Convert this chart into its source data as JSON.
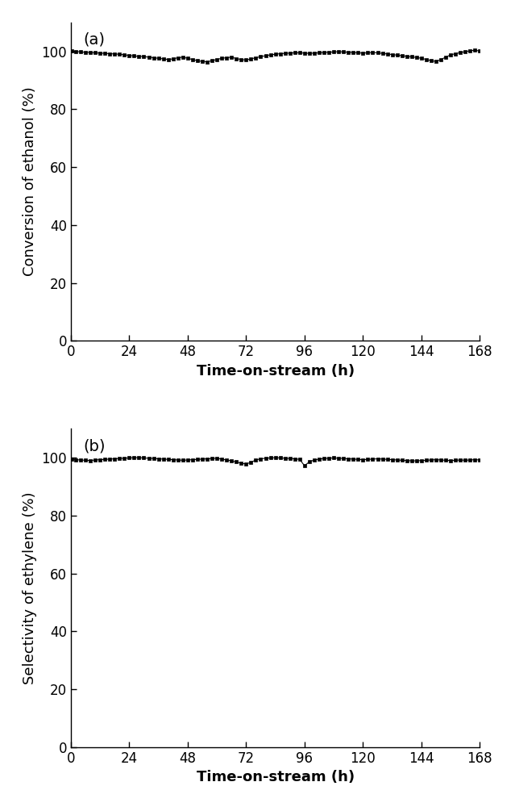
{
  "panel_a": {
    "label": "(a)",
    "ylabel": "Conversion of ethanol (%)",
    "xlabel": "Time-on-stream (h)",
    "ylim": [
      0,
      110
    ],
    "xlim": [
      0,
      168
    ],
    "yticks": [
      0,
      20,
      40,
      60,
      80,
      100
    ],
    "xticks": [
      0,
      24,
      48,
      72,
      96,
      120,
      144,
      168
    ],
    "data_x": [
      0.5,
      2,
      4,
      6,
      8,
      10,
      12,
      14,
      16,
      18,
      20,
      22,
      24,
      26,
      28,
      30,
      32,
      34,
      36,
      38,
      40,
      42,
      44,
      46,
      48,
      50,
      52,
      54,
      56,
      58,
      60,
      62,
      64,
      66,
      68,
      70,
      72,
      74,
      76,
      78,
      80,
      82,
      84,
      86,
      88,
      90,
      92,
      94,
      96,
      98,
      100,
      102,
      104,
      106,
      108,
      110,
      112,
      114,
      116,
      118,
      120,
      122,
      124,
      126,
      128,
      130,
      132,
      134,
      136,
      138,
      140,
      142,
      144,
      146,
      148,
      150,
      152,
      154,
      156,
      158,
      160,
      162,
      164,
      166,
      168
    ],
    "data_y": [
      100.1,
      100.0,
      99.8,
      99.7,
      99.6,
      99.5,
      99.4,
      99.3,
      99.2,
      99.1,
      99.0,
      98.8,
      98.6,
      98.4,
      98.3,
      98.2,
      98.0,
      97.8,
      97.6,
      97.4,
      97.2,
      97.4,
      97.8,
      98.0,
      97.6,
      97.2,
      96.8,
      96.5,
      96.4,
      96.8,
      97.2,
      97.6,
      97.8,
      98.0,
      97.5,
      97.2,
      97.0,
      97.4,
      97.8,
      98.2,
      98.5,
      98.8,
      99.0,
      99.2,
      99.3,
      99.4,
      99.5,
      99.5,
      99.4,
      99.3,
      99.4,
      99.5,
      99.6,
      99.7,
      99.8,
      99.9,
      99.8,
      99.7,
      99.6,
      99.5,
      99.4,
      99.5,
      99.6,
      99.5,
      99.3,
      99.1,
      98.9,
      98.7,
      98.5,
      98.3,
      98.1,
      97.9,
      97.6,
      97.2,
      96.8,
      96.5,
      97.2,
      98.0,
      98.8,
      99.2,
      99.6,
      99.9,
      100.2,
      100.4,
      100.1
    ]
  },
  "panel_b": {
    "label": "(b)",
    "ylabel": "Selectivity of ethylene (%)",
    "xlabel": "Time-on-stream (h)",
    "ylim": [
      0,
      110
    ],
    "xlim": [
      0,
      168
    ],
    "yticks": [
      0,
      20,
      40,
      60,
      80,
      100
    ],
    "xticks": [
      0,
      24,
      48,
      72,
      96,
      120,
      144,
      168
    ],
    "data_x": [
      0.5,
      2,
      4,
      6,
      8,
      10,
      12,
      14,
      16,
      18,
      20,
      22,
      24,
      26,
      28,
      30,
      32,
      34,
      36,
      38,
      40,
      42,
      44,
      46,
      48,
      50,
      52,
      54,
      56,
      58,
      60,
      62,
      64,
      66,
      68,
      70,
      72,
      74,
      76,
      78,
      80,
      82,
      84,
      86,
      88,
      90,
      92,
      94,
      96,
      98,
      100,
      102,
      104,
      106,
      108,
      110,
      112,
      114,
      116,
      118,
      120,
      122,
      124,
      126,
      128,
      130,
      132,
      134,
      136,
      138,
      140,
      142,
      144,
      146,
      148,
      150,
      152,
      154,
      156,
      158,
      160,
      162,
      164,
      166,
      168
    ],
    "data_y": [
      99.5,
      99.3,
      99.2,
      99.1,
      99.0,
      99.2,
      99.3,
      99.4,
      99.5,
      99.6,
      99.7,
      99.8,
      99.9,
      100.0,
      100.0,
      99.9,
      99.8,
      99.7,
      99.6,
      99.5,
      99.4,
      99.3,
      99.2,
      99.1,
      99.2,
      99.3,
      99.4,
      99.5,
      99.6,
      99.7,
      99.8,
      99.5,
      99.2,
      98.9,
      98.5,
      98.1,
      97.8,
      98.4,
      99.2,
      99.6,
      99.8,
      99.9,
      100.0,
      99.9,
      99.8,
      99.7,
      99.6,
      99.4,
      97.2,
      98.6,
      99.2,
      99.5,
      99.7,
      99.8,
      99.9,
      99.8,
      99.7,
      99.6,
      99.5,
      99.4,
      99.3,
      99.4,
      99.5,
      99.6,
      99.5,
      99.4,
      99.3,
      99.2,
      99.1,
      99.0,
      98.9,
      98.9,
      99.0,
      99.1,
      99.2,
      99.3,
      99.2,
      99.1,
      99.0,
      99.1,
      99.2,
      99.1,
      99.2,
      99.3,
      99.2
    ]
  },
  "marker": "s",
  "marker_size": 3,
  "marker_color": "black",
  "line_color": "black",
  "line_width": 0.8,
  "label_fontsize": 13,
  "tick_fontsize": 12,
  "panel_label_fontsize": 14,
  "background_color": "#ffffff"
}
